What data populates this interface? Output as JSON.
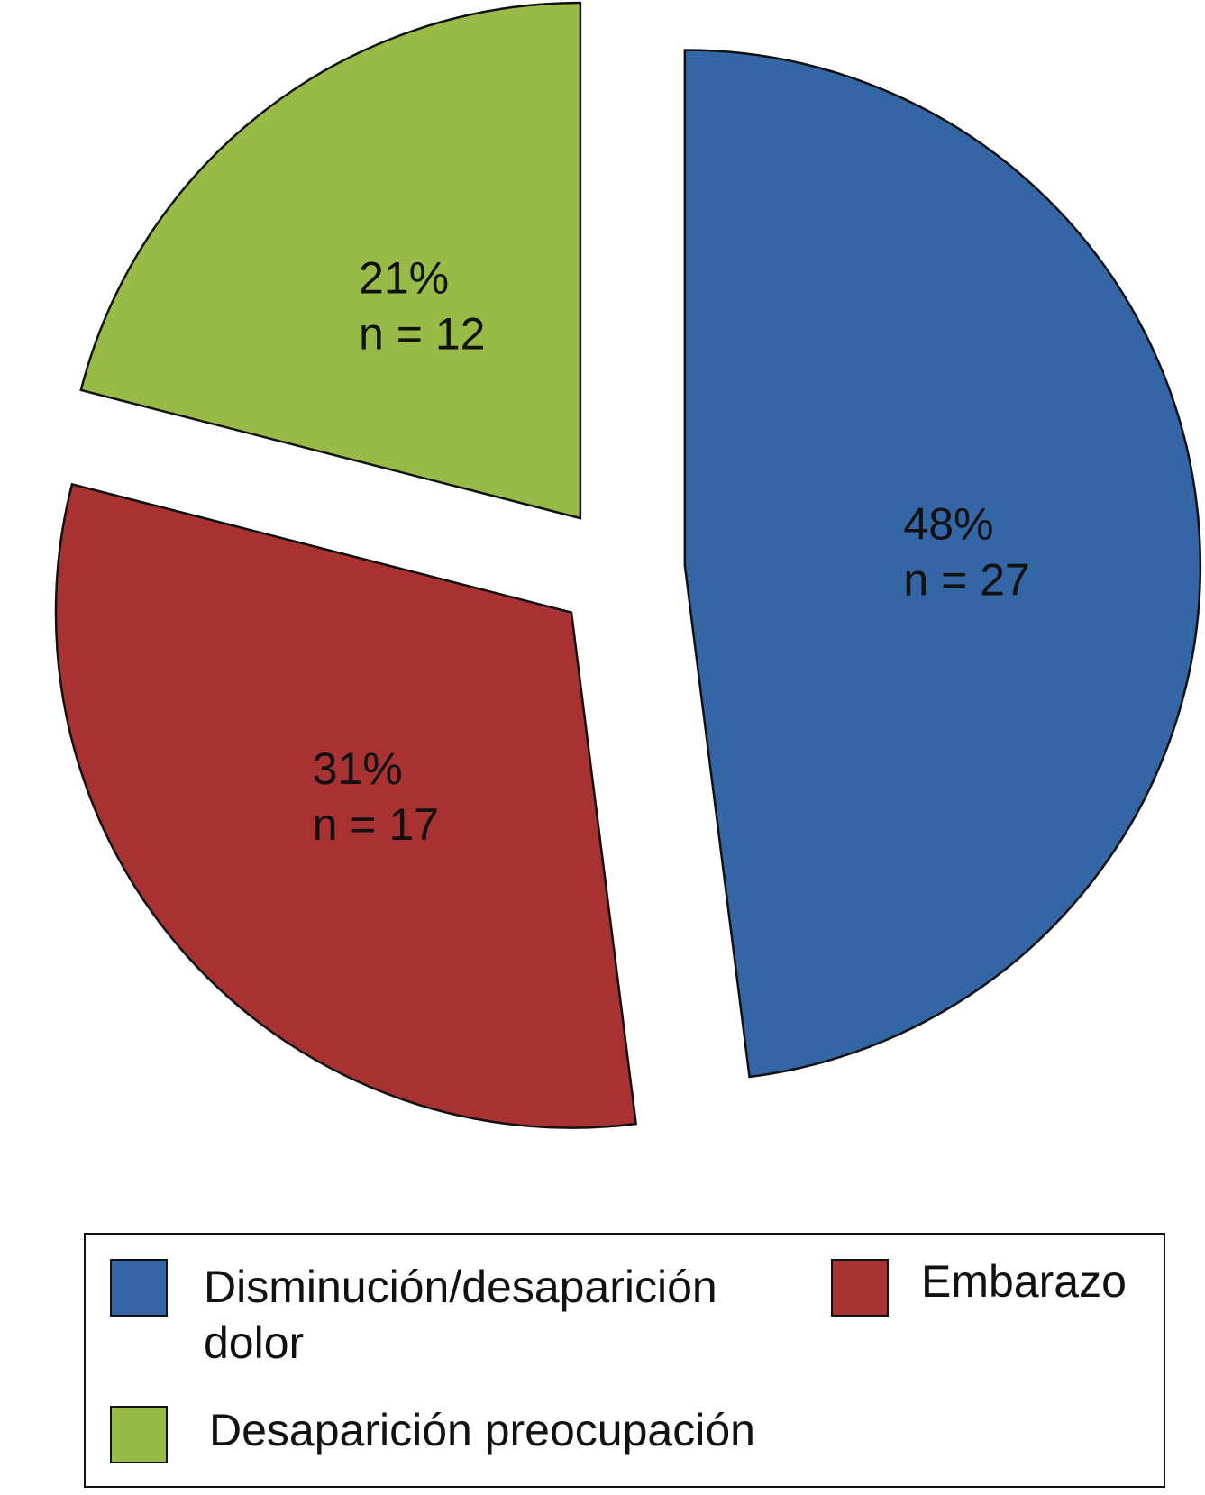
{
  "chart_data": {
    "type": "pie",
    "exploded": true,
    "slices": [
      {
        "category": "Disminución/desaparición dolor",
        "percent": 48,
        "n": 27,
        "pct_label": "48%",
        "n_label": "n = 27",
        "color": "#3465a4"
      },
      {
        "category": "Embarazo",
        "percent": 31,
        "n": 17,
        "pct_label": "31%",
        "n_label": "n = 17",
        "color": "#a83232"
      },
      {
        "category": "Desaparición preocupación",
        "percent": 21,
        "n": 12,
        "pct_label": "21%",
        "n_label": "n = 12",
        "color": "#98bb48"
      }
    ],
    "legend": {
      "placement": "bottom",
      "entries": [
        {
          "label": "Disminución/desaparición dolor",
          "color": "#3465a4"
        },
        {
          "label": "Embarazo",
          "color": "#a83232"
        },
        {
          "label": "Desaparición preocupación",
          "color": "#98bb48"
        }
      ]
    }
  }
}
